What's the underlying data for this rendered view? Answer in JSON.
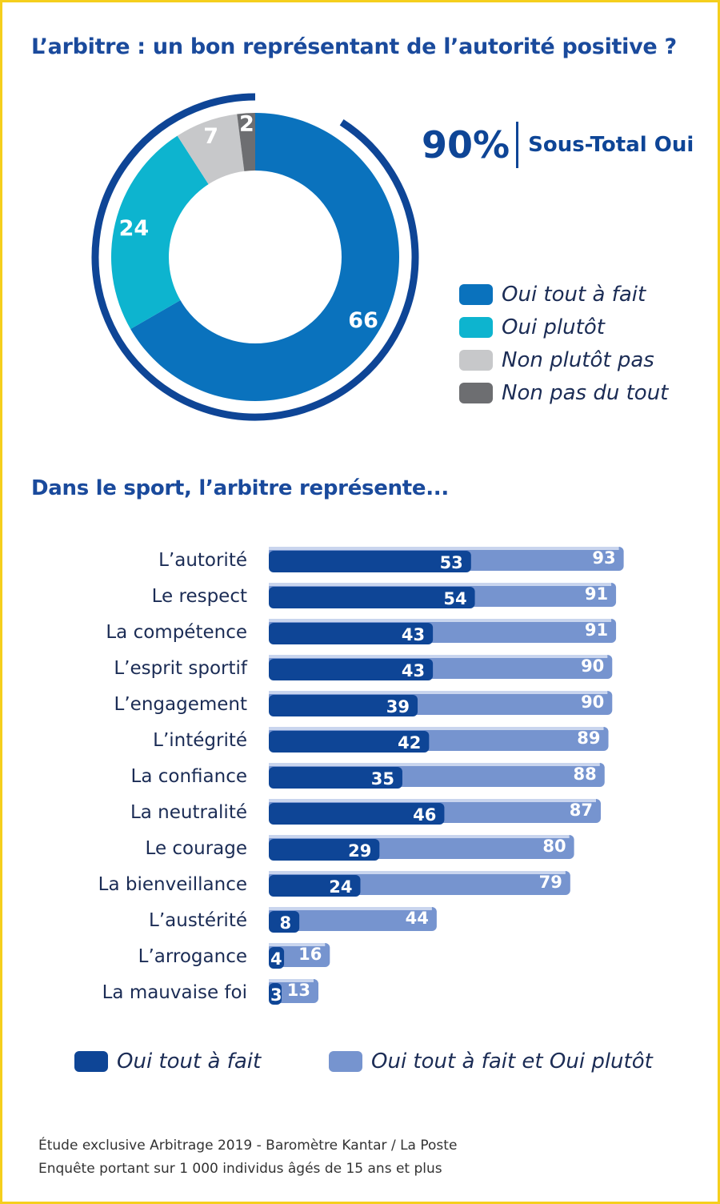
{
  "donut": {
    "title": "L’arbitre : un bon représentant de l’autorité positive ?",
    "subtotal_value": "90%",
    "subtotal_label": "Sous-Total Oui",
    "legend": [
      {
        "label": "Oui tout à fait",
        "color": "#0a72bd"
      },
      {
        "label": "Oui plutôt",
        "color": "#0db4cf"
      },
      {
        "label": "Non plutôt pas",
        "color": "#c7c8ca"
      },
      {
        "label": "Non pas du tout",
        "color": "#6d6e71"
      }
    ]
  },
  "bars": {
    "title": "Dans le sport, l’arbitre représente...",
    "legend": [
      {
        "label": "Oui tout à fait",
        "color": "#0e4596"
      },
      {
        "label": "Oui tout à fait et Oui plutôt",
        "color": "#7694cf"
      }
    ]
  },
  "source": {
    "line1": "Étude exclusive Arbitrage 2019 - Baromètre Kantar / La Poste",
    "line2": "Enquête portant sur 1 000 individus âgés de 15 ans et plus"
  },
  "chart_data": [
    {
      "type": "pie",
      "title": "L’arbitre : un bon représentant de l’autorité positive ?",
      "categories": [
        "Oui tout à fait",
        "Oui plutôt",
        "Non plutôt pas",
        "Non pas du tout"
      ],
      "values": [
        66,
        24,
        7,
        2
      ],
      "colors": [
        "#0a72bd",
        "#0db4cf",
        "#c7c8ca",
        "#6d6e71"
      ],
      "annotation": "90% Sous-Total Oui"
    },
    {
      "type": "bar",
      "orientation": "horizontal",
      "title": "Dans le sport, l’arbitre représente...",
      "categories": [
        "L’autorité",
        "Le respect",
        "La compétence",
        "L’esprit sportif",
        "L’engagement",
        "L’intégrité",
        "La confiance",
        "La neutralité",
        "Le courage",
        "La bienveillance",
        "L’austérité",
        "L’arrogance",
        "La mauvaise foi"
      ],
      "series": [
        {
          "name": "Oui tout à fait",
          "values": [
            53,
            54,
            43,
            43,
            39,
            42,
            35,
            46,
            29,
            24,
            8,
            4,
            3
          ],
          "color": "#0e4596"
        },
        {
          "name": "Oui tout à fait et Oui plutôt",
          "values": [
            93,
            91,
            91,
            90,
            90,
            89,
            88,
            87,
            80,
            79,
            44,
            16,
            13
          ],
          "color": "#7694cf"
        }
      ],
      "legend_position": "bottom"
    }
  ]
}
